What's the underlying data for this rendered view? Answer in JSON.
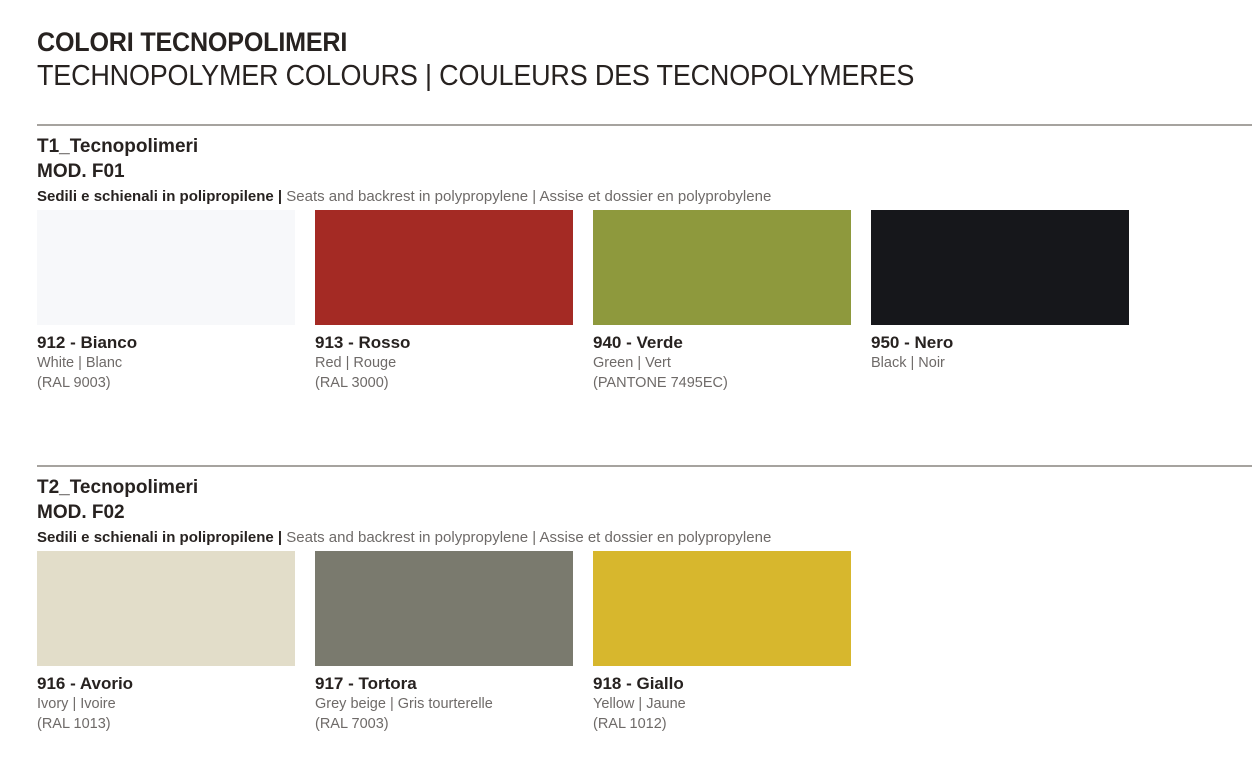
{
  "page": {
    "title": "COLORI TECNOPOLIMERI",
    "subtitle": "TECHNOPOLYMER COLOURS | COULEURS DES TECNOPOLYMERES"
  },
  "theme": {
    "heading_color": "#272220",
    "secondary_text_color": "#6e6a68",
    "rule_color": "#a6a39f",
    "page_bg": "#ffffff"
  },
  "sections": [
    {
      "name": "T1_Tecnopolimeri",
      "model": "MOD. F01",
      "material_it": "Sedili e schienali in polipropilene |",
      "material_en_fr": "Seats and backrest in polypropylene | Assise et dossier en polyprobylene",
      "swatches": [
        {
          "code_name": "912 - Bianco",
          "translation": "White | Blanc",
          "reference": "(RAL 9003)",
          "color": "#f7f8fa"
        },
        {
          "code_name": "913 - Rosso",
          "translation": "Red | Rouge",
          "reference": "(RAL 3000)",
          "color": "#a42a24"
        },
        {
          "code_name": "940 - Verde",
          "translation": "Green | Vert",
          "reference": "(PANTONE 7495EC)",
          "color": "#8e993d"
        },
        {
          "code_name": "950 - Nero",
          "translation": "Black | Noir",
          "reference": "",
          "color": "#16171b"
        }
      ]
    },
    {
      "name": "T2_Tecnopolimeri",
      "model": "MOD. F02",
      "material_it": "Sedili e schienali in polipropilene |",
      "material_en_fr": "Seats and backrest in polypropylene | Assise et dossier en polypropylene",
      "swatches": [
        {
          "code_name": "916 - Avorio",
          "translation": "Ivory | Ivoire",
          "reference": "(RAL 1013)",
          "color": "#e2ddc9"
        },
        {
          "code_name": "917 - Tortora",
          "translation": "Grey beige | Gris tourterelle",
          "reference": "(RAL 7003)",
          "color": "#7a7a6e"
        },
        {
          "code_name": "918 - Giallo",
          "translation": "Yellow | Jaune",
          "reference": "(RAL 1012)",
          "color": "#d7b72d"
        }
      ]
    }
  ]
}
